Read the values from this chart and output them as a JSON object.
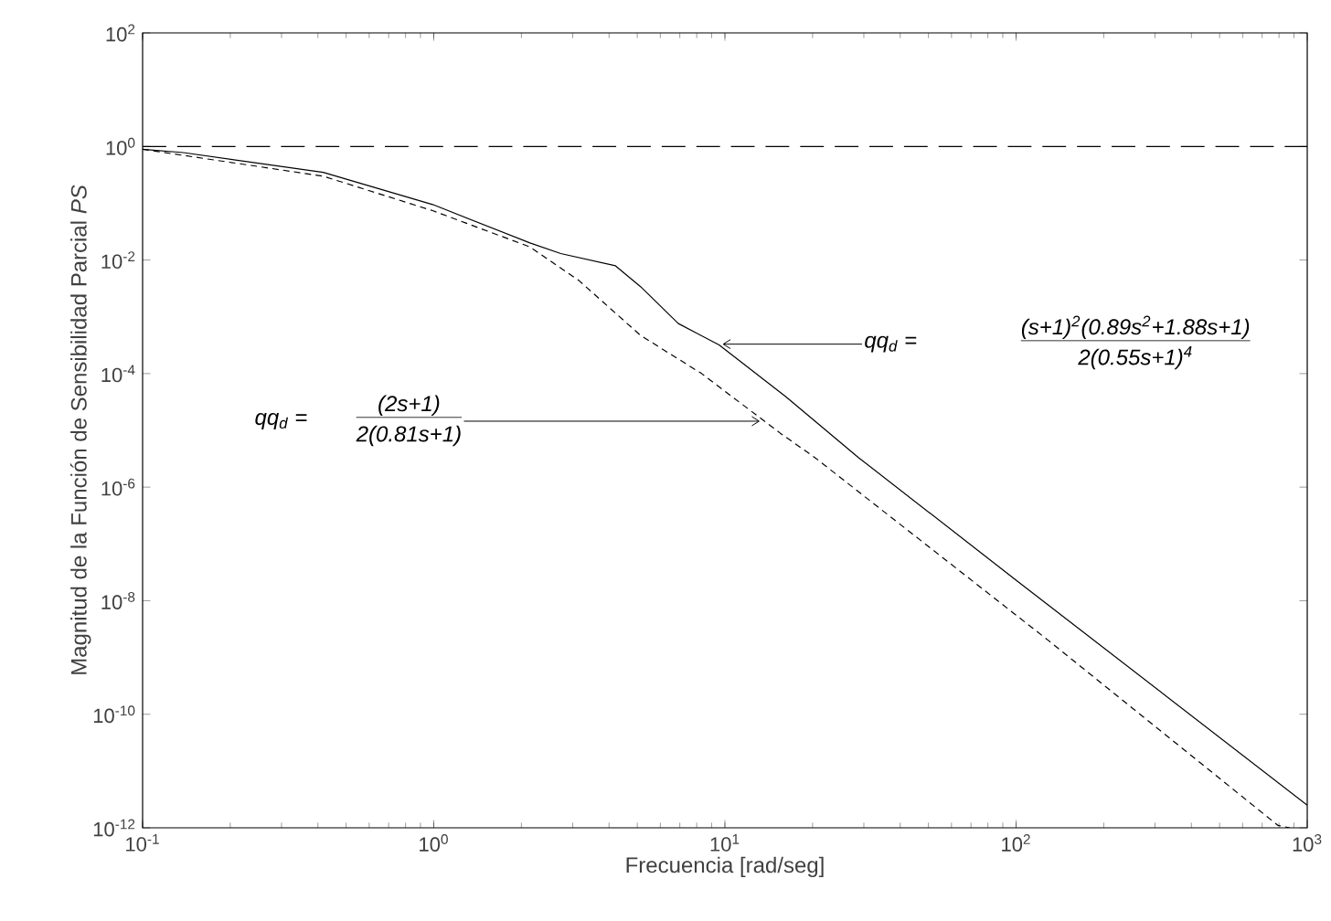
{
  "chart_data": {
    "type": "line",
    "xlabel": "Frecuencia [rad/seg]",
    "ylabel": "Magnitud de la Función de Sensibilidad Parcial *PS*",
    "log": "xy",
    "marker": "none",
    "xlim": [
      0.1,
      1000
    ],
    "ylim": [
      1e-12,
      100
    ],
    "xticks": [
      {
        "value": 0.1,
        "label": "10$^{-1}$"
      },
      {
        "value": 1,
        "label": "10$^{0}$"
      },
      {
        "value": 10,
        "label": "10$^{1}$"
      },
      {
        "value": 100,
        "label": "10$^{2}$"
      },
      {
        "value": 1000,
        "label": "10$^{3}$"
      }
    ],
    "yticks": [
      {
        "value": 1e-12,
        "label": "10$^{-12}$"
      },
      {
        "value": 1e-10,
        "label": "10$^{-10}$"
      },
      {
        "value": 1e-08,
        "label": "10$^{-8}$"
      },
      {
        "value": 1e-06,
        "label": "10$^{-6}$"
      },
      {
        "value": 0.0001,
        "label": "10$^{-4}$"
      },
      {
        "value": 0.01,
        "label": "10$^{-2}$"
      },
      {
        "value": 1,
        "label": "10$^{0}$"
      },
      {
        "value": 100,
        "label": "10$^{2}$"
      }
    ],
    "series": [
      {
        "color": "#000000",
        "line_style": "solid",
        "x": [
          0.1,
          0.138,
          0.417,
          0.991,
          2.14,
          2.73,
          4.21,
          5.13,
          6.92,
          9.55,
          16.2,
          28.8,
          100,
          1000
        ],
        "values": [
          0.89,
          0.78,
          0.35,
          0.095,
          0.02,
          0.013,
          0.0079,
          0.0034,
          0.00076,
          0.00032,
          3.9e-05,
          3.3e-06,
          2.3e-08,
          2.5e-12
        ]
      },
      {
        "color": "#000000",
        "line_style": "dashed",
        "x": [
          0.1,
          0.417,
          0.991,
          2.14,
          3.16,
          5.13,
          8.32,
          15.5,
          20.4,
          129,
          794,
          871
        ],
        "values": [
          0.89,
          0.3,
          0.074,
          0.017,
          0.0043,
          0.00047,
          0.0001,
          8.9e-06,
          3.3e-06,
          2e-09,
          1.1e-12,
          1e-12
        ]
      }
    ],
    "ref_lines": [
      {
        "axis": "y",
        "value": 1,
        "color": "#000000",
        "line_style": "dashed"
      }
    ],
    "annotations": [
      "qq$_{d}$  =",
      "(2s+1)",
      {
        "text": "2(0.81s+1)",
        "x": 13.2,
        "y": 1.45e-05
      },
      {
        "text": "qq$_{d}$  =",
        "x": 9.8,
        "y": 0.00033
      },
      "(s+1)$^{2}$(0.89s$^{2}$+1.88s+1)",
      "2(0.55s+1)$^{4}$"
    ]
  }
}
